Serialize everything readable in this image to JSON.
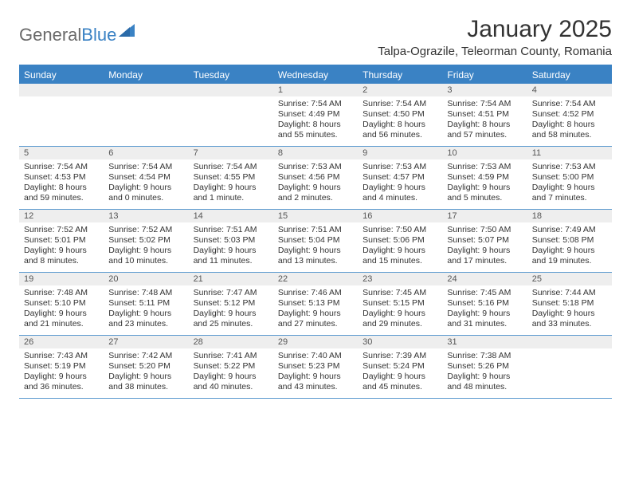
{
  "brand": {
    "part1": "General",
    "part2": "Blue"
  },
  "title": "January 2025",
  "subtitle": "Talpa-Ograzile, Teleorman County, Romania",
  "colors": {
    "accent": "#3a82c4",
    "band": "#eeeeee",
    "text": "#333333",
    "muted": "#555555",
    "bg": "#ffffff"
  },
  "day_headers": [
    "Sunday",
    "Monday",
    "Tuesday",
    "Wednesday",
    "Thursday",
    "Friday",
    "Saturday"
  ],
  "weeks": [
    {
      "nums": [
        "",
        "",
        "",
        "1",
        "2",
        "3",
        "4"
      ],
      "cells": [
        {
          "lines": []
        },
        {
          "lines": []
        },
        {
          "lines": []
        },
        {
          "lines": [
            "Sunrise: 7:54 AM",
            "Sunset: 4:49 PM",
            "Daylight: 8 hours",
            "and 55 minutes."
          ]
        },
        {
          "lines": [
            "Sunrise: 7:54 AM",
            "Sunset: 4:50 PM",
            "Daylight: 8 hours",
            "and 56 minutes."
          ]
        },
        {
          "lines": [
            "Sunrise: 7:54 AM",
            "Sunset: 4:51 PM",
            "Daylight: 8 hours",
            "and 57 minutes."
          ]
        },
        {
          "lines": [
            "Sunrise: 7:54 AM",
            "Sunset: 4:52 PM",
            "Daylight: 8 hours",
            "and 58 minutes."
          ]
        }
      ]
    },
    {
      "nums": [
        "5",
        "6",
        "7",
        "8",
        "9",
        "10",
        "11"
      ],
      "cells": [
        {
          "lines": [
            "Sunrise: 7:54 AM",
            "Sunset: 4:53 PM",
            "Daylight: 8 hours",
            "and 59 minutes."
          ]
        },
        {
          "lines": [
            "Sunrise: 7:54 AM",
            "Sunset: 4:54 PM",
            "Daylight: 9 hours",
            "and 0 minutes."
          ]
        },
        {
          "lines": [
            "Sunrise: 7:54 AM",
            "Sunset: 4:55 PM",
            "Daylight: 9 hours",
            "and 1 minute."
          ]
        },
        {
          "lines": [
            "Sunrise: 7:53 AM",
            "Sunset: 4:56 PM",
            "Daylight: 9 hours",
            "and 2 minutes."
          ]
        },
        {
          "lines": [
            "Sunrise: 7:53 AM",
            "Sunset: 4:57 PM",
            "Daylight: 9 hours",
            "and 4 minutes."
          ]
        },
        {
          "lines": [
            "Sunrise: 7:53 AM",
            "Sunset: 4:59 PM",
            "Daylight: 9 hours",
            "and 5 minutes."
          ]
        },
        {
          "lines": [
            "Sunrise: 7:53 AM",
            "Sunset: 5:00 PM",
            "Daylight: 9 hours",
            "and 7 minutes."
          ]
        }
      ]
    },
    {
      "nums": [
        "12",
        "13",
        "14",
        "15",
        "16",
        "17",
        "18"
      ],
      "cells": [
        {
          "lines": [
            "Sunrise: 7:52 AM",
            "Sunset: 5:01 PM",
            "Daylight: 9 hours",
            "and 8 minutes."
          ]
        },
        {
          "lines": [
            "Sunrise: 7:52 AM",
            "Sunset: 5:02 PM",
            "Daylight: 9 hours",
            "and 10 minutes."
          ]
        },
        {
          "lines": [
            "Sunrise: 7:51 AM",
            "Sunset: 5:03 PM",
            "Daylight: 9 hours",
            "and 11 minutes."
          ]
        },
        {
          "lines": [
            "Sunrise: 7:51 AM",
            "Sunset: 5:04 PM",
            "Daylight: 9 hours",
            "and 13 minutes."
          ]
        },
        {
          "lines": [
            "Sunrise: 7:50 AM",
            "Sunset: 5:06 PM",
            "Daylight: 9 hours",
            "and 15 minutes."
          ]
        },
        {
          "lines": [
            "Sunrise: 7:50 AM",
            "Sunset: 5:07 PM",
            "Daylight: 9 hours",
            "and 17 minutes."
          ]
        },
        {
          "lines": [
            "Sunrise: 7:49 AM",
            "Sunset: 5:08 PM",
            "Daylight: 9 hours",
            "and 19 minutes."
          ]
        }
      ]
    },
    {
      "nums": [
        "19",
        "20",
        "21",
        "22",
        "23",
        "24",
        "25"
      ],
      "cells": [
        {
          "lines": [
            "Sunrise: 7:48 AM",
            "Sunset: 5:10 PM",
            "Daylight: 9 hours",
            "and 21 minutes."
          ]
        },
        {
          "lines": [
            "Sunrise: 7:48 AM",
            "Sunset: 5:11 PM",
            "Daylight: 9 hours",
            "and 23 minutes."
          ]
        },
        {
          "lines": [
            "Sunrise: 7:47 AM",
            "Sunset: 5:12 PM",
            "Daylight: 9 hours",
            "and 25 minutes."
          ]
        },
        {
          "lines": [
            "Sunrise: 7:46 AM",
            "Sunset: 5:13 PM",
            "Daylight: 9 hours",
            "and 27 minutes."
          ]
        },
        {
          "lines": [
            "Sunrise: 7:45 AM",
            "Sunset: 5:15 PM",
            "Daylight: 9 hours",
            "and 29 minutes."
          ]
        },
        {
          "lines": [
            "Sunrise: 7:45 AM",
            "Sunset: 5:16 PM",
            "Daylight: 9 hours",
            "and 31 minutes."
          ]
        },
        {
          "lines": [
            "Sunrise: 7:44 AM",
            "Sunset: 5:18 PM",
            "Daylight: 9 hours",
            "and 33 minutes."
          ]
        }
      ]
    },
    {
      "nums": [
        "26",
        "27",
        "28",
        "29",
        "30",
        "31",
        ""
      ],
      "cells": [
        {
          "lines": [
            "Sunrise: 7:43 AM",
            "Sunset: 5:19 PM",
            "Daylight: 9 hours",
            "and 36 minutes."
          ]
        },
        {
          "lines": [
            "Sunrise: 7:42 AM",
            "Sunset: 5:20 PM",
            "Daylight: 9 hours",
            "and 38 minutes."
          ]
        },
        {
          "lines": [
            "Sunrise: 7:41 AM",
            "Sunset: 5:22 PM",
            "Daylight: 9 hours",
            "and 40 minutes."
          ]
        },
        {
          "lines": [
            "Sunrise: 7:40 AM",
            "Sunset: 5:23 PM",
            "Daylight: 9 hours",
            "and 43 minutes."
          ]
        },
        {
          "lines": [
            "Sunrise: 7:39 AM",
            "Sunset: 5:24 PM",
            "Daylight: 9 hours",
            "and 45 minutes."
          ]
        },
        {
          "lines": [
            "Sunrise: 7:38 AM",
            "Sunset: 5:26 PM",
            "Daylight: 9 hours",
            "and 48 minutes."
          ]
        },
        {
          "lines": []
        }
      ]
    }
  ]
}
